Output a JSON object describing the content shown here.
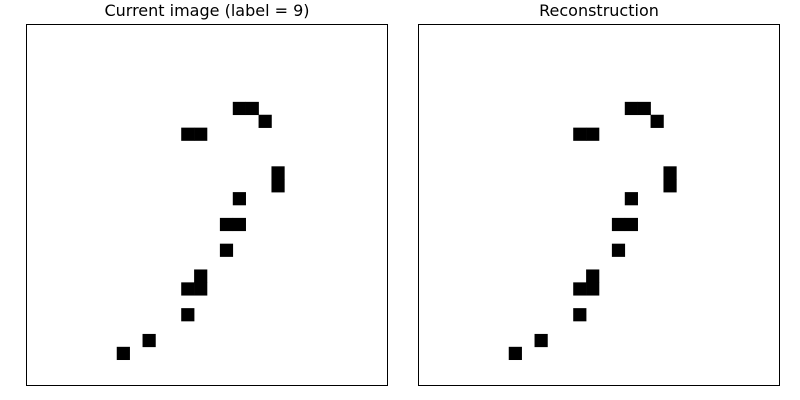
{
  "chart_data": [
    {
      "type": "heatmap",
      "title": "Current image (label = 9)",
      "grid_size": [
        28,
        28
      ],
      "xticks": false,
      "yticks": false,
      "colors": {
        "on": "#000000",
        "off": "#ffffff",
        "frame": "#000000"
      },
      "on_pixels": [
        {
          "row": 6,
          "col": 16
        },
        {
          "row": 6,
          "col": 17
        },
        {
          "row": 7,
          "col": 18
        },
        {
          "row": 8,
          "col": 12
        },
        {
          "row": 8,
          "col": 13
        },
        {
          "row": 11,
          "col": 19
        },
        {
          "row": 12,
          "col": 19
        },
        {
          "row": 13,
          "col": 16
        },
        {
          "row": 15,
          "col": 15
        },
        {
          "row": 15,
          "col": 16
        },
        {
          "row": 17,
          "col": 15
        },
        {
          "row": 19,
          "col": 13
        },
        {
          "row": 20,
          "col": 12
        },
        {
          "row": 20,
          "col": 13
        },
        {
          "row": 22,
          "col": 12
        },
        {
          "row": 24,
          "col": 9
        },
        {
          "row": 25,
          "col": 7
        }
      ]
    },
    {
      "type": "heatmap",
      "title": "Reconstruction",
      "grid_size": [
        28,
        28
      ],
      "xticks": false,
      "yticks": false,
      "colors": {
        "on": "#000000",
        "off": "#ffffff",
        "frame": "#000000"
      },
      "on_pixels": [
        {
          "row": 6,
          "col": 16
        },
        {
          "row": 6,
          "col": 17
        },
        {
          "row": 7,
          "col": 18
        },
        {
          "row": 8,
          "col": 12
        },
        {
          "row": 8,
          "col": 13
        },
        {
          "row": 11,
          "col": 19
        },
        {
          "row": 12,
          "col": 19
        },
        {
          "row": 13,
          "col": 16
        },
        {
          "row": 15,
          "col": 15
        },
        {
          "row": 15,
          "col": 16
        },
        {
          "row": 17,
          "col": 15
        },
        {
          "row": 19,
          "col": 13
        },
        {
          "row": 20,
          "col": 12
        },
        {
          "row": 20,
          "col": 13
        },
        {
          "row": 22,
          "col": 12
        },
        {
          "row": 24,
          "col": 9
        },
        {
          "row": 25,
          "col": 7
        }
      ]
    }
  ]
}
